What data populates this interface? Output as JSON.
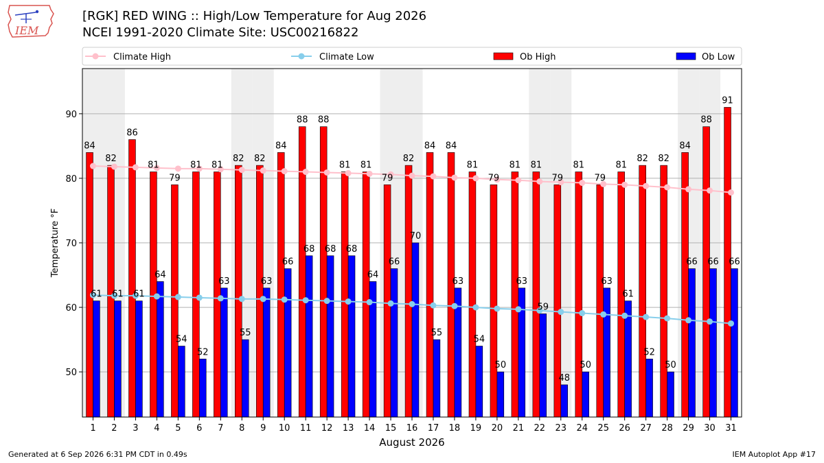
{
  "header": {
    "title_line1": "[RGK] RED WING :: High/Low Temperature for Aug 2026",
    "title_line2": "NCEI 1991-2020 Climate Site: USC00216822",
    "logo_text": "IEM"
  },
  "footer": {
    "generated": "Generated at 6 Sep 2026 6:31 PM CDT in 0.49s",
    "app": "IEM Autoplot App #17"
  },
  "colors": {
    "ob_high": "#ff0000",
    "ob_low": "#0000ff",
    "climate_high": "#ffc0cb",
    "climate_low": "#87ceeb",
    "weekend_shade": "#eeeeee"
  },
  "chart_data": {
    "type": "bar",
    "xlabel": "August 2026",
    "ylabel": "Temperature °F",
    "ylim": [
      43,
      97
    ],
    "yticks": [
      50,
      60,
      70,
      80,
      90
    ],
    "grid": "horizontal",
    "legend_placement": "top",
    "weekend_shaded_days": [
      1,
      2,
      8,
      9,
      15,
      16,
      22,
      23,
      29,
      30
    ],
    "days": [
      1,
      2,
      3,
      4,
      5,
      6,
      7,
      8,
      9,
      10,
      11,
      12,
      13,
      14,
      15,
      16,
      17,
      18,
      19,
      20,
      21,
      22,
      23,
      24,
      25,
      26,
      27,
      28,
      29,
      30,
      31
    ],
    "series": [
      {
        "name": "Ob High",
        "kind": "bar",
        "values": [
          84,
          82,
          86,
          81,
          79,
          81,
          81,
          82,
          82,
          84,
          88,
          88,
          81,
          81,
          79,
          82,
          84,
          84,
          81,
          79,
          81,
          81,
          79,
          81,
          79,
          81,
          82,
          82,
          84,
          88,
          91
        ]
      },
      {
        "name": "Ob Low",
        "kind": "bar",
        "values": [
          61,
          61,
          61,
          64,
          54,
          52,
          63,
          55,
          63,
          66,
          68,
          68,
          68,
          64,
          66,
          70,
          55,
          63,
          54,
          50,
          63,
          59,
          48,
          50,
          63,
          61,
          52,
          50,
          66,
          66,
          66
        ]
      },
      {
        "name": "Climate High",
        "kind": "line",
        "values": [
          81.9,
          81.8,
          81.7,
          81.6,
          81.5,
          81.5,
          81.4,
          81.3,
          81.2,
          81.1,
          81.0,
          80.9,
          80.8,
          80.7,
          80.6,
          80.4,
          80.3,
          80.1,
          80.0,
          79.8,
          79.7,
          79.5,
          79.4,
          79.3,
          79.1,
          79.0,
          78.8,
          78.6,
          78.3,
          78.1,
          77.8
        ]
      },
      {
        "name": "Climate Low",
        "kind": "line",
        "values": [
          61.9,
          61.8,
          61.8,
          61.7,
          61.6,
          61.5,
          61.4,
          61.3,
          61.3,
          61.2,
          61.1,
          61.0,
          60.9,
          60.8,
          60.6,
          60.5,
          60.3,
          60.2,
          60.0,
          59.8,
          59.7,
          59.5,
          59.3,
          59.1,
          58.9,
          58.7,
          58.5,
          58.3,
          58.0,
          57.8,
          57.5
        ]
      }
    ]
  }
}
